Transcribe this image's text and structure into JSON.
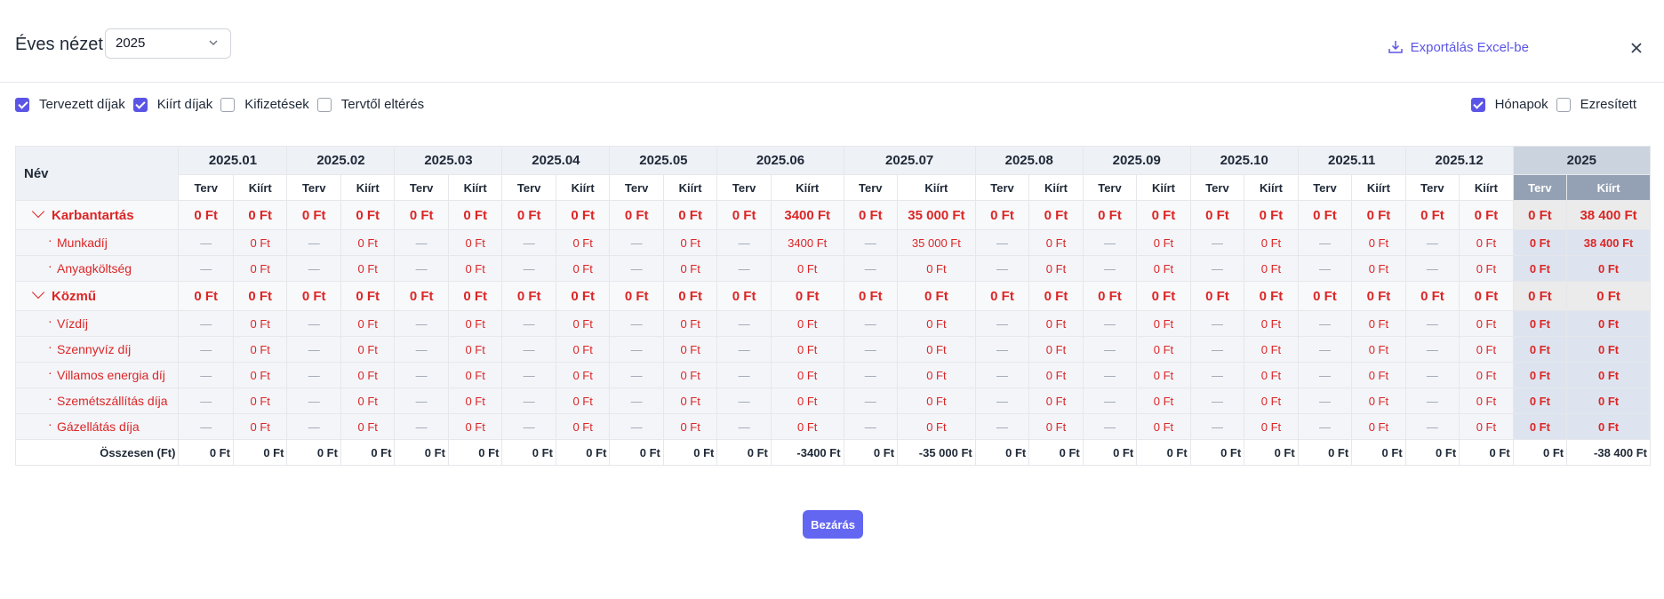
{
  "header": {
    "title": "Éves nézet",
    "year_value": "2025",
    "export_label": "Exportálás Excel-be"
  },
  "filters": {
    "left": [
      {
        "label": "Tervezett díjak",
        "checked": true
      },
      {
        "label": "Kiírt díjak",
        "checked": true
      },
      {
        "label": "Kifizetések",
        "checked": false
      },
      {
        "label": "Tervtől eltérés",
        "checked": false
      }
    ],
    "right": [
      {
        "label": "Hónapok",
        "checked": true
      },
      {
        "label": "Ezresített",
        "checked": false
      }
    ]
  },
  "table": {
    "name_header": "Név",
    "months": [
      "2025.01",
      "2025.02",
      "2025.03",
      "2025.04",
      "2025.05",
      "2025.06",
      "2025.07",
      "2025.08",
      "2025.09",
      "2025.10",
      "2025.11",
      "2025.12"
    ],
    "year_label": "2025",
    "sub_headers": {
      "plan": "Terv",
      "issued": "Kiírt"
    },
    "dash": "—",
    "categories": [
      {
        "name": "Karbantartás",
        "plan": [
          "0 Ft",
          "0 Ft",
          "0 Ft",
          "0 Ft",
          "0 Ft",
          "0 Ft",
          "0 Ft",
          "0 Ft",
          "0 Ft",
          "0 Ft",
          "0 Ft",
          "0 Ft"
        ],
        "issued": [
          "0 Ft",
          "0 Ft",
          "0 Ft",
          "0 Ft",
          "0 Ft",
          "3400 Ft",
          "35 000 Ft",
          "0 Ft",
          "0 Ft",
          "0 Ft",
          "0 Ft",
          "0 Ft"
        ],
        "year_plan": "0 Ft",
        "year_issued": "38 400 Ft",
        "items": [
          {
            "name": "Munkadíj",
            "issued": [
              "0 Ft",
              "0 Ft",
              "0 Ft",
              "0 Ft",
              "0 Ft",
              "3400 Ft",
              "35 000 Ft",
              "0 Ft",
              "0 Ft",
              "0 Ft",
              "0 Ft",
              "0 Ft"
            ],
            "year_plan": "0 Ft",
            "year_issued": "38 400 Ft"
          },
          {
            "name": "Anyagköltség",
            "issued": [
              "0 Ft",
              "0 Ft",
              "0 Ft",
              "0 Ft",
              "0 Ft",
              "0 Ft",
              "0 Ft",
              "0 Ft",
              "0 Ft",
              "0 Ft",
              "0 Ft",
              "0 Ft"
            ],
            "year_plan": "0 Ft",
            "year_issued": "0 Ft"
          }
        ]
      },
      {
        "name": "Közmű",
        "plan": [
          "0 Ft",
          "0 Ft",
          "0 Ft",
          "0 Ft",
          "0 Ft",
          "0 Ft",
          "0 Ft",
          "0 Ft",
          "0 Ft",
          "0 Ft",
          "0 Ft",
          "0 Ft"
        ],
        "issued": [
          "0 Ft",
          "0 Ft",
          "0 Ft",
          "0 Ft",
          "0 Ft",
          "0 Ft",
          "0 Ft",
          "0 Ft",
          "0 Ft",
          "0 Ft",
          "0 Ft",
          "0 Ft"
        ],
        "year_plan": "0 Ft",
        "year_issued": "0 Ft",
        "items": [
          {
            "name": "Vízdíj",
            "issued": [
              "0 Ft",
              "0 Ft",
              "0 Ft",
              "0 Ft",
              "0 Ft",
              "0 Ft",
              "0 Ft",
              "0 Ft",
              "0 Ft",
              "0 Ft",
              "0 Ft",
              "0 Ft"
            ],
            "year_plan": "0 Ft",
            "year_issued": "0 Ft"
          },
          {
            "name": "Szennyvíz díj",
            "issued": [
              "0 Ft",
              "0 Ft",
              "0 Ft",
              "0 Ft",
              "0 Ft",
              "0 Ft",
              "0 Ft",
              "0 Ft",
              "0 Ft",
              "0 Ft",
              "0 Ft",
              "0 Ft"
            ],
            "year_plan": "0 Ft",
            "year_issued": "0 Ft"
          },
          {
            "name": "Villamos energia díj",
            "issued": [
              "0 Ft",
              "0 Ft",
              "0 Ft",
              "0 Ft",
              "0 Ft",
              "0 Ft",
              "0 Ft",
              "0 Ft",
              "0 Ft",
              "0 Ft",
              "0 Ft",
              "0 Ft"
            ],
            "year_plan": "0 Ft",
            "year_issued": "0 Ft"
          },
          {
            "name": "Szemétszállítás díja",
            "issued": [
              "0 Ft",
              "0 Ft",
              "0 Ft",
              "0 Ft",
              "0 Ft",
              "0 Ft",
              "0 Ft",
              "0 Ft",
              "0 Ft",
              "0 Ft",
              "0 Ft",
              "0 Ft"
            ],
            "year_plan": "0 Ft",
            "year_issued": "0 Ft"
          },
          {
            "name": "Gázellátás díja",
            "issued": [
              "0 Ft",
              "0 Ft",
              "0 Ft",
              "0 Ft",
              "0 Ft",
              "0 Ft",
              "0 Ft",
              "0 Ft",
              "0 Ft",
              "0 Ft",
              "0 Ft",
              "0 Ft"
            ],
            "year_plan": "0 Ft",
            "year_issued": "0 Ft"
          }
        ]
      }
    ],
    "total": {
      "label": "Összesen (Ft)",
      "plan": [
        "0 Ft",
        "0 Ft",
        "0 Ft",
        "0 Ft",
        "0 Ft",
        "0 Ft",
        "0 Ft",
        "0 Ft",
        "0 Ft",
        "0 Ft",
        "0 Ft",
        "0 Ft"
      ],
      "issued": [
        "0 Ft",
        "0 Ft",
        "0 Ft",
        "0 Ft",
        "0 Ft",
        "-3400 Ft",
        "-35 000 Ft",
        "0 Ft",
        "0 Ft",
        "0 Ft",
        "0 Ft",
        "0 Ft"
      ],
      "year_plan": "0 Ft",
      "year_issued": "-38 400 Ft"
    }
  },
  "footer": {
    "close_label": "Bezárás"
  },
  "colors": {
    "accent": "#5b55e6",
    "negative": "#dc2626",
    "year_header": "#94a1b4"
  }
}
